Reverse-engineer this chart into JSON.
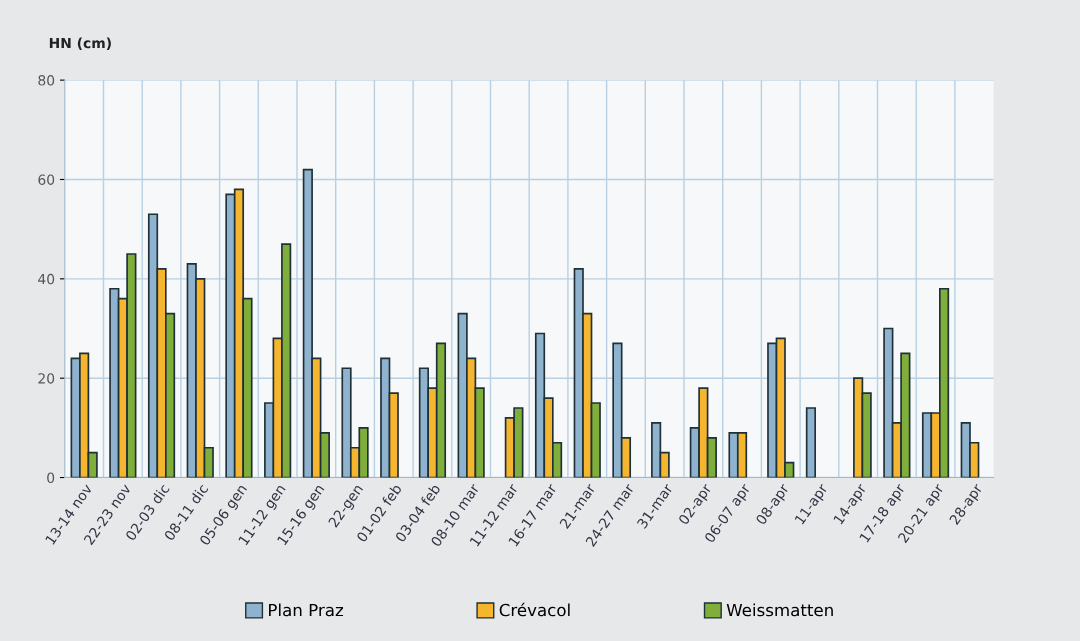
{
  "chart_data": {
    "type": "bar",
    "ylabel": "HN (cm)",
    "categories": [
      "13-14 nov",
      "22-23 nov",
      "02-03 dic",
      "08-11 dic",
      "05-06 gen",
      "11-12 gen",
      "15-16 gen",
      "22-gen",
      "01-02 feb",
      "03-04 feb",
      "08-10 mar",
      "11-12 mar",
      "16-17 mar",
      "21-mar",
      "24-27 mar",
      "31-mar",
      "02-apr",
      "06-07 apr",
      "08-apr",
      "11-apr",
      "14-apr",
      "17-18 apr",
      "20-21 apr",
      "28-apr"
    ],
    "series": [
      {
        "name": "Plan Praz",
        "color": "#8fb3cf",
        "values": [
          24,
          38,
          53,
          43,
          57,
          15,
          62,
          22,
          24,
          22,
          33,
          null,
          29,
          42,
          27,
          11,
          10,
          9,
          27,
          14,
          null,
          30,
          13,
          11
        ]
      },
      {
        "name": "Crévacol",
        "color": "#f5b52e",
        "values": [
          25,
          36,
          42,
          40,
          58,
          28,
          24,
          6,
          17,
          18,
          24,
          12,
          16,
          33,
          8,
          5,
          18,
          9,
          28,
          null,
          20,
          11,
          13,
          7
        ]
      },
      {
        "name": "Weissmatten",
        "color": "#7fae3a",
        "values": [
          5,
          45,
          33,
          6,
          36,
          47,
          9,
          10,
          null,
          27,
          18,
          14,
          7,
          15,
          null,
          null,
          8,
          null,
          3,
          null,
          17,
          25,
          38,
          null
        ]
      }
    ],
    "ylim": [
      0,
      80
    ],
    "yticks": [
      0,
      20,
      40,
      60,
      80
    ],
    "grid": true,
    "legend": "bottom"
  }
}
